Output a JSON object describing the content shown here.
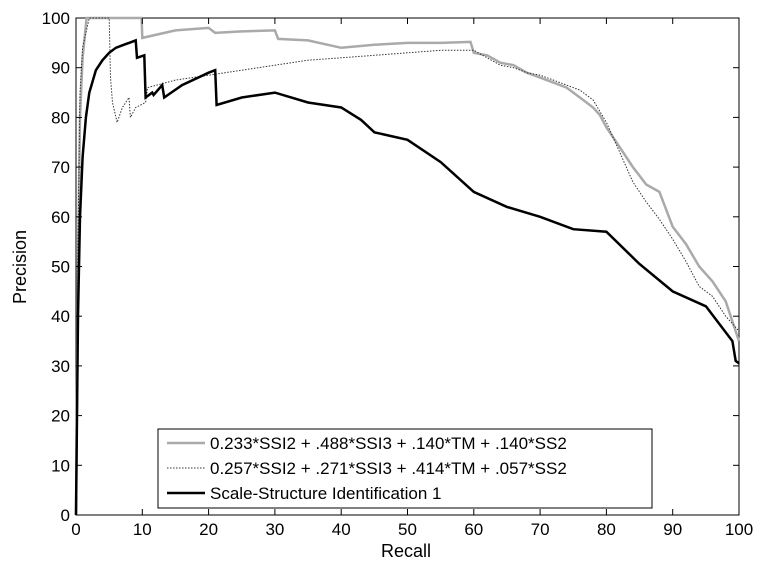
{
  "chart_data": {
    "type": "line",
    "title": "",
    "xlabel": "Recall",
    "ylabel": "Precision",
    "xlim": [
      0,
      100
    ],
    "ylim": [
      0,
      100
    ],
    "grid": false,
    "legend_position": "bottom-right",
    "x_ticks": [
      "0",
      "10",
      "20",
      "30",
      "40",
      "50",
      "60",
      "70",
      "80",
      "90",
      "100"
    ],
    "y_ticks": [
      "0",
      "10",
      "20",
      "30",
      "40",
      "50",
      "60",
      "70",
      "80",
      "90",
      "100"
    ],
    "series": [
      {
        "name": "0.233*SSI2 + .488*SSI3 + .140*TM + .140*SS2",
        "color": "#aaaaaa",
        "style": "solid-thick",
        "x": [
          0,
          0.3,
          0.6,
          1,
          1.6,
          2,
          9.9,
          10,
          15,
          20,
          21,
          25,
          30,
          30.5,
          35,
          40,
          45,
          50,
          55,
          59.5,
          60,
          62,
          64,
          66,
          68,
          70,
          72,
          74,
          76,
          78,
          79,
          80,
          82,
          84,
          86,
          88,
          90,
          92,
          94,
          96,
          98,
          100
        ],
        "y": [
          0,
          50,
          80,
          92,
          100,
          100,
          100,
          96,
          97.5,
          98,
          97,
          97.3,
          97.5,
          95.8,
          95.5,
          94,
          94.6,
          95,
          95,
          95.2,
          93,
          92.5,
          91,
          90.5,
          89,
          88,
          87,
          86,
          84,
          82,
          80.5,
          78,
          74,
          70,
          66.5,
          65,
          58,
          54.5,
          50,
          47,
          43,
          35
        ]
      },
      {
        "name": "0.257*SSI2 + .271*SSI3 + .414*TM + .057*SS2",
        "color": "#333333",
        "style": "dotted-thin",
        "x": [
          0,
          0.3,
          0.6,
          1,
          1.5,
          2,
          2.1,
          5,
          5.2,
          5.5,
          6.2,
          7,
          8,
          8.2,
          9,
          10.5,
          10.8,
          15,
          20,
          25,
          30,
          35,
          40,
          45,
          50,
          55,
          60,
          62,
          64,
          66,
          68,
          70,
          72,
          74,
          76,
          78,
          80,
          82,
          84,
          86,
          88,
          90,
          92,
          94,
          96,
          98,
          100
        ],
        "y": [
          0,
          55,
          85,
          94,
          97,
          100,
          100,
          100,
          88,
          83,
          79,
          82,
          84,
          80,
          82,
          83,
          86,
          87.5,
          88.5,
          89.5,
          90.5,
          91.5,
          92,
          92.5,
          93,
          93.5,
          93.5,
          92,
          90.5,
          90,
          89,
          88.5,
          87.5,
          86.5,
          85.5,
          83.5,
          79,
          73,
          67,
          63,
          59.5,
          55.5,
          51,
          46,
          44,
          40,
          37
        ]
      },
      {
        "name": "Scale-Structure Identification 1",
        "color": "#000000",
        "style": "solid-thick",
        "x": [
          0,
          0.3,
          0.6,
          1,
          1.5,
          2,
          3,
          4,
          5,
          6,
          7,
          8,
          9,
          9.2,
          10.3,
          10.5,
          11.5,
          11.7,
          13,
          13.3,
          16,
          20,
          21,
          21.2,
          25,
          30,
          35,
          40,
          43,
          45,
          50,
          55,
          60,
          65,
          70,
          75,
          80,
          85,
          90,
          95,
          99,
          99.5,
          100
        ],
        "y": [
          0,
          40,
          60,
          72,
          80,
          85,
          89.5,
          91.5,
          93,
          94,
          94.5,
          95,
          95.5,
          92,
          92.5,
          84,
          85,
          84.5,
          86.5,
          84,
          86.5,
          89,
          89.5,
          82.5,
          84,
          85,
          83,
          82,
          79.5,
          77,
          75.5,
          71,
          65,
          62,
          60,
          57.5,
          57,
          50.5,
          45,
          42,
          35,
          31,
          30.5
        ]
      }
    ]
  }
}
